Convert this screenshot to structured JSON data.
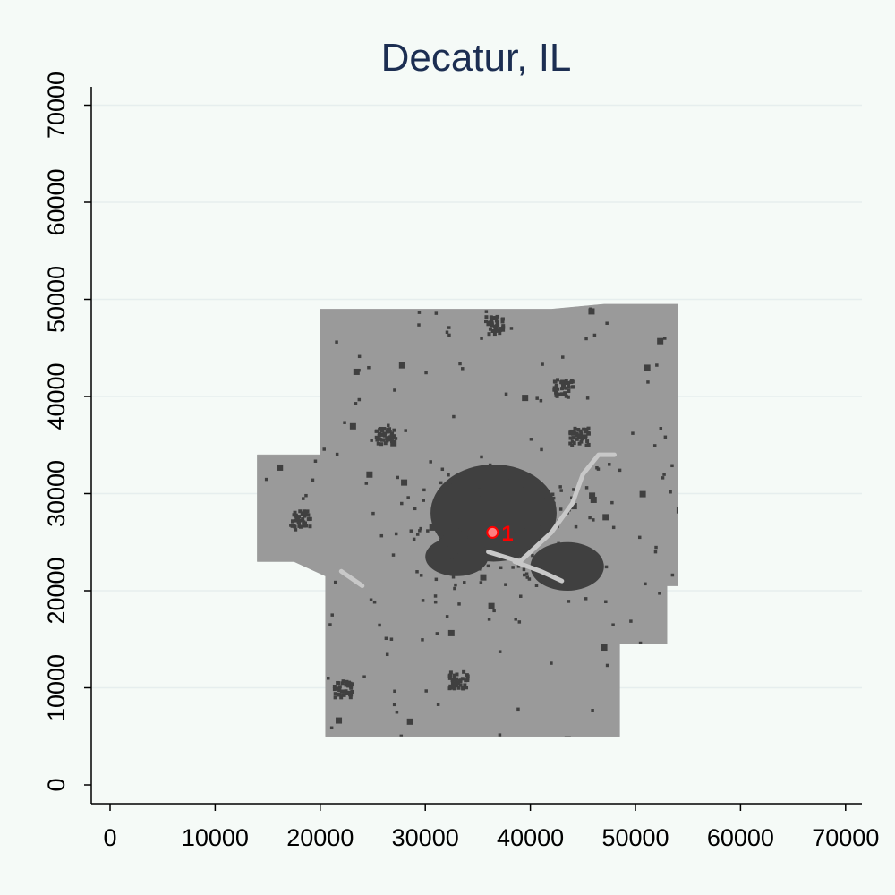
{
  "title": "Decatur, IL",
  "colors": {
    "background": "#f5faf7",
    "title": "#1c2e52",
    "axis": "#000000",
    "grid": "#e6eeee",
    "land": "#9a9a9a",
    "urban": "#404040",
    "water": "#c8c8c8",
    "marker": "#ff0000"
  },
  "chart_data": {
    "type": "map",
    "title": "Decatur, IL",
    "xlabel": "",
    "ylabel": "",
    "xlim": [
      0,
      70000
    ],
    "ylim": [
      0,
      70000
    ],
    "x_ticks": [
      0,
      10000,
      20000,
      30000,
      40000,
      50000,
      60000,
      70000
    ],
    "y_ticks": [
      0,
      10000,
      20000,
      30000,
      40000,
      50000,
      60000,
      70000
    ],
    "x_tick_labels": [
      "0",
      "10000",
      "20000",
      "30000",
      "40000",
      "50000",
      "60000",
      "70000"
    ],
    "y_tick_labels": [
      "0",
      "10000",
      "20000",
      "30000",
      "40000",
      "50000",
      "60000",
      "70000"
    ],
    "grid": "horizontal",
    "boundary": [
      [
        14000,
        34000
      ],
      [
        20000,
        34000
      ],
      [
        20000,
        49000
      ],
      [
        42000,
        49000
      ],
      [
        47000,
        49500
      ],
      [
        54000,
        49500
      ],
      [
        54000,
        20500
      ],
      [
        53000,
        20500
      ],
      [
        53000,
        14500
      ],
      [
        48500,
        14500
      ],
      [
        48500,
        5000
      ],
      [
        20500,
        5000
      ],
      [
        20500,
        21500
      ],
      [
        17500,
        23000
      ],
      [
        14000,
        23000
      ]
    ],
    "water": [
      [
        [
          36000,
          24000
        ],
        [
          39000,
          23000
        ],
        [
          42000,
          26000
        ],
        [
          44000,
          29000
        ],
        [
          45000,
          32000
        ],
        [
          46500,
          34000
        ],
        [
          48000,
          34000
        ]
      ],
      [
        [
          38500,
          23000
        ],
        [
          41000,
          22000
        ],
        [
          43000,
          21000
        ]
      ],
      [
        [
          22000,
          22000
        ],
        [
          24000,
          20500
        ]
      ]
    ],
    "urban_core": [
      {
        "x": 36500,
        "y": 28000,
        "rx": 6000,
        "ry": 5000
      },
      {
        "x": 43500,
        "y": 22500,
        "rx": 3500,
        "ry": 2500
      },
      {
        "x": 33000,
        "y": 23500,
        "rx": 3000,
        "ry": 2000
      }
    ],
    "markers": [
      {
        "x": 36400,
        "y": 26000,
        "label": "1"
      }
    ]
  }
}
